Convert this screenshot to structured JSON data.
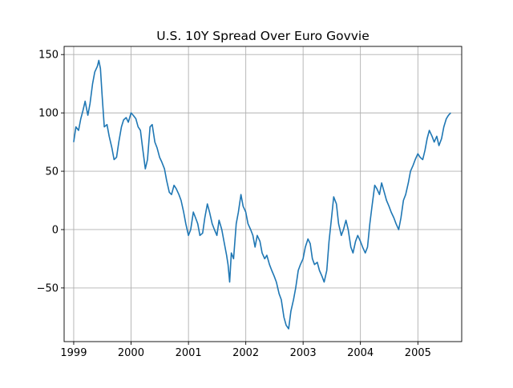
{
  "chart_data": {
    "type": "line",
    "title": "U.S. 10Y Spread Over Euro Govvie",
    "xlabel": "",
    "ylabel": "",
    "x_ticks": [
      "1999",
      "2000",
      "2001",
      "2002",
      "2003",
      "2004",
      "2005"
    ],
    "y_ticks": [
      "−50",
      "0",
      "50",
      "100",
      "150"
    ],
    "y_tick_values": [
      -50,
      0,
      50,
      100,
      150
    ],
    "xlim": [
      "1998-11-01",
      "2005-10-07"
    ],
    "ylim": [
      -96,
      157
    ],
    "grid": true,
    "series": [
      {
        "color": "#1f77b4",
        "points": [
          [
            "1999-01-01",
            75
          ],
          [
            "1999-01-15",
            88
          ],
          [
            "1999-02-01",
            85
          ],
          [
            "1999-02-15",
            95
          ],
          [
            "1999-03-01",
            102
          ],
          [
            "1999-03-15",
            110
          ],
          [
            "1999-04-01",
            98
          ],
          [
            "1999-04-15",
            108
          ],
          [
            "1999-05-01",
            125
          ],
          [
            "1999-05-15",
            135
          ],
          [
            "1999-06-01",
            140
          ],
          [
            "1999-06-10",
            145
          ],
          [
            "1999-06-20",
            138
          ],
          [
            "1999-07-01",
            115
          ],
          [
            "1999-07-15",
            88
          ],
          [
            "1999-08-01",
            90
          ],
          [
            "1999-08-15",
            80
          ],
          [
            "1999-09-01",
            70
          ],
          [
            "1999-09-15",
            60
          ],
          [
            "1999-10-01",
            62
          ],
          [
            "1999-10-15",
            75
          ],
          [
            "1999-11-01",
            88
          ],
          [
            "1999-11-15",
            94
          ],
          [
            "1999-12-01",
            96
          ],
          [
            "1999-12-15",
            92
          ],
          [
            "2000-01-01",
            100
          ],
          [
            "2000-01-15",
            98
          ],
          [
            "2000-02-01",
            95
          ],
          [
            "2000-02-15",
            88
          ],
          [
            "2000-03-01",
            85
          ],
          [
            "2000-03-15",
            70
          ],
          [
            "2000-04-01",
            52
          ],
          [
            "2000-04-15",
            60
          ],
          [
            "2000-05-01",
            88
          ],
          [
            "2000-05-15",
            90
          ],
          [
            "2000-06-01",
            75
          ],
          [
            "2000-06-15",
            70
          ],
          [
            "2000-07-01",
            62
          ],
          [
            "2000-07-15",
            58
          ],
          [
            "2000-08-01",
            52
          ],
          [
            "2000-08-15",
            42
          ],
          [
            "2000-09-01",
            32
          ],
          [
            "2000-09-15",
            30
          ],
          [
            "2000-10-01",
            38
          ],
          [
            "2000-10-15",
            35
          ],
          [
            "2000-11-01",
            30
          ],
          [
            "2000-11-15",
            25
          ],
          [
            "2000-12-01",
            15
          ],
          [
            "2000-12-15",
            5
          ],
          [
            "2001-01-01",
            -5
          ],
          [
            "2001-01-15",
            0
          ],
          [
            "2001-02-01",
            15
          ],
          [
            "2001-02-15",
            10
          ],
          [
            "2001-03-01",
            5
          ],
          [
            "2001-03-15",
            -5
          ],
          [
            "2001-04-01",
            -3
          ],
          [
            "2001-04-15",
            10
          ],
          [
            "2001-05-01",
            22
          ],
          [
            "2001-05-15",
            15
          ],
          [
            "2001-06-01",
            5
          ],
          [
            "2001-06-15",
            0
          ],
          [
            "2001-07-01",
            -5
          ],
          [
            "2001-07-15",
            8
          ],
          [
            "2001-08-01",
            0
          ],
          [
            "2001-08-15",
            -10
          ],
          [
            "2001-09-01",
            -22
          ],
          [
            "2001-09-10",
            -30
          ],
          [
            "2001-09-20",
            -45
          ],
          [
            "2001-10-01",
            -20
          ],
          [
            "2001-10-15",
            -25
          ],
          [
            "2001-11-01",
            5
          ],
          [
            "2001-11-15",
            15
          ],
          [
            "2001-12-01",
            30
          ],
          [
            "2001-12-15",
            20
          ],
          [
            "2002-01-01",
            15
          ],
          [
            "2002-01-15",
            5
          ],
          [
            "2002-02-01",
            0
          ],
          [
            "2002-02-15",
            -5
          ],
          [
            "2002-03-01",
            -15
          ],
          [
            "2002-03-15",
            -5
          ],
          [
            "2002-04-01",
            -10
          ],
          [
            "2002-04-15",
            -20
          ],
          [
            "2002-05-01",
            -25
          ],
          [
            "2002-05-15",
            -22
          ],
          [
            "2002-06-01",
            -30
          ],
          [
            "2002-06-15",
            -35
          ],
          [
            "2002-07-01",
            -40
          ],
          [
            "2002-07-15",
            -45
          ],
          [
            "2002-08-01",
            -55
          ],
          [
            "2002-08-15",
            -60
          ],
          [
            "2002-09-01",
            -75
          ],
          [
            "2002-09-15",
            -82
          ],
          [
            "2002-10-01",
            -85
          ],
          [
            "2002-10-15",
            -70
          ],
          [
            "2002-11-01",
            -60
          ],
          [
            "2002-11-15",
            -50
          ],
          [
            "2002-12-01",
            -35
          ],
          [
            "2002-12-15",
            -30
          ],
          [
            "2003-01-01",
            -25
          ],
          [
            "2003-01-15",
            -15
          ],
          [
            "2003-02-01",
            -8
          ],
          [
            "2003-02-15",
            -12
          ],
          [
            "2003-03-01",
            -25
          ],
          [
            "2003-03-15",
            -30
          ],
          [
            "2003-04-01",
            -28
          ],
          [
            "2003-04-15",
            -35
          ],
          [
            "2003-05-01",
            -40
          ],
          [
            "2003-05-15",
            -45
          ],
          [
            "2003-06-01",
            -35
          ],
          [
            "2003-06-15",
            -10
          ],
          [
            "2003-07-01",
            10
          ],
          [
            "2003-07-15",
            28
          ],
          [
            "2003-08-01",
            22
          ],
          [
            "2003-08-15",
            5
          ],
          [
            "2003-09-01",
            -5
          ],
          [
            "2003-09-15",
            0
          ],
          [
            "2003-10-01",
            8
          ],
          [
            "2003-10-15",
            0
          ],
          [
            "2003-11-01",
            -15
          ],
          [
            "2003-11-15",
            -20
          ],
          [
            "2003-12-01",
            -10
          ],
          [
            "2003-12-15",
            -5
          ],
          [
            "2004-01-01",
            -10
          ],
          [
            "2004-01-15",
            -15
          ],
          [
            "2004-02-01",
            -20
          ],
          [
            "2004-02-15",
            -15
          ],
          [
            "2004-03-01",
            5
          ],
          [
            "2004-03-15",
            20
          ],
          [
            "2004-04-01",
            38
          ],
          [
            "2004-04-15",
            35
          ],
          [
            "2004-05-01",
            30
          ],
          [
            "2004-05-15",
            40
          ],
          [
            "2004-06-01",
            32
          ],
          [
            "2004-06-15",
            25
          ],
          [
            "2004-07-01",
            20
          ],
          [
            "2004-07-15",
            15
          ],
          [
            "2004-08-01",
            10
          ],
          [
            "2004-08-15",
            5
          ],
          [
            "2004-09-01",
            0
          ],
          [
            "2004-09-15",
            10
          ],
          [
            "2004-10-01",
            25
          ],
          [
            "2004-10-15",
            30
          ],
          [
            "2004-11-01",
            40
          ],
          [
            "2004-11-15",
            50
          ],
          [
            "2004-12-01",
            55
          ],
          [
            "2004-12-15",
            60
          ],
          [
            "2005-01-01",
            65
          ],
          [
            "2005-01-15",
            62
          ],
          [
            "2005-02-01",
            60
          ],
          [
            "2005-02-15",
            68
          ],
          [
            "2005-03-01",
            78
          ],
          [
            "2005-03-15",
            85
          ],
          [
            "2005-04-01",
            80
          ],
          [
            "2005-04-15",
            75
          ],
          [
            "2005-05-01",
            80
          ],
          [
            "2005-05-15",
            72
          ],
          [
            "2005-06-01",
            78
          ],
          [
            "2005-06-15",
            88
          ],
          [
            "2005-07-01",
            95
          ],
          [
            "2005-07-15",
            98
          ],
          [
            "2005-07-29",
            100
          ]
        ]
      }
    ]
  }
}
